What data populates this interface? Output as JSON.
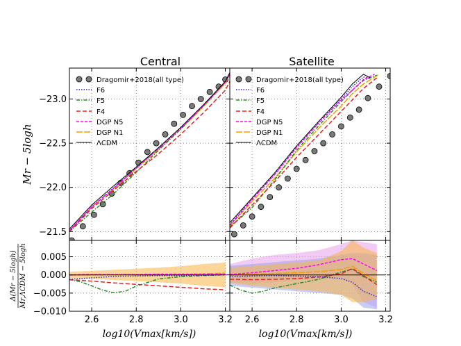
{
  "chart_data": {
    "type": "line",
    "panels": [
      {
        "title": "Central"
      },
      {
        "title": "Satellite"
      }
    ],
    "xlabel": "log10(Vmax[km/s])",
    "ylabel_top": "Mr − 5logh",
    "ylabel_bottom_num": "Δ(Mr − 5logh)",
    "ylabel_bottom_den": "Mr,ΛCDM − 5logh",
    "xlim": [
      2.5,
      3.22
    ],
    "ylim_top": [
      -21.4,
      -23.35
    ],
    "ylim_bottom": [
      -0.01,
      0.0095
    ],
    "xticks": [
      "2.6",
      "2.8",
      "3.0",
      "3.2"
    ],
    "xtick_values": [
      2.6,
      2.8,
      3.0,
      3.2
    ],
    "yticks_top": [
      "−23.0",
      "−22.5",
      "−22.0",
      "−21.5"
    ],
    "ytick_values_top": [
      -23.0,
      -22.5,
      -22.0,
      -21.5
    ],
    "yticks_bottom": [
      "0.005",
      "0.000",
      "−0.005",
      "−0.010"
    ],
    "ytick_values_bottom": [
      0.005,
      0.0,
      -0.005,
      -0.01
    ],
    "legend": [
      "Dragomir+2018(all type)",
      "F6",
      "F5",
      "F4",
      "DGP N5",
      "DGP N1",
      "ΛCDM"
    ],
    "colors": {
      "obs": "#7a7a7a",
      "F6": "#2a2ad6",
      "F5": "#2a8a2a",
      "F4": "#e02020",
      "N5": "#ff00ff",
      "N1": "#f0a000",
      "LCDM": "#000000",
      "band_N1": "#f7b544",
      "band_F6": "#9aa4f2",
      "band_N5": "#e6a0ea"
    },
    "central": {
      "obs_x": [
        2.51,
        2.56,
        2.61,
        2.65,
        2.69,
        2.73,
        2.77,
        2.81,
        2.85,
        2.89,
        2.93,
        2.97,
        3.01,
        3.05,
        3.09,
        3.13,
        3.17,
        3.2
      ],
      "obs_y": [
        -21.4,
        -21.56,
        -21.69,
        -21.81,
        -21.93,
        -22.05,
        -22.16,
        -22.28,
        -22.4,
        -22.5,
        -22.6,
        -22.72,
        -22.82,
        -22.92,
        -23.0,
        -23.08,
        -23.14,
        -23.22
      ],
      "curves": {
        "LCDM": {
          "x": [
            2.5,
            2.6,
            2.7,
            2.8,
            2.9,
            3.0,
            3.1,
            3.2,
            3.22
          ],
          "y": [
            -21.53,
            -21.8,
            -22.02,
            -22.23,
            -22.45,
            -22.68,
            -22.93,
            -23.2,
            -23.3
          ]
        },
        "F6": {
          "x": [
            2.5,
            2.6,
            2.7,
            2.8,
            2.9,
            3.0,
            3.1,
            3.2,
            3.22
          ],
          "y": [
            -21.51,
            -21.78,
            -22.0,
            -22.22,
            -22.44,
            -22.67,
            -22.92,
            -23.19,
            -23.29
          ]
        },
        "N5": {
          "x": [
            2.5,
            2.6,
            2.7,
            2.8,
            2.9,
            3.0,
            3.1,
            3.2,
            3.22
          ],
          "y": [
            -21.51,
            -21.78,
            -21.99,
            -22.22,
            -22.44,
            -22.67,
            -22.92,
            -23.19,
            -23.28
          ]
        },
        "N1": {
          "x": [
            2.5,
            2.6,
            2.7,
            2.8,
            2.9,
            3.0,
            3.1,
            3.2,
            3.22
          ],
          "y": [
            -21.51,
            -21.78,
            -21.99,
            -22.21,
            -22.43,
            -22.66,
            -22.91,
            -23.18,
            -23.27
          ]
        },
        "F5": {
          "x": [
            2.5,
            2.6,
            2.7,
            2.8,
            2.9,
            3.0,
            3.1,
            3.2,
            3.22
          ],
          "y": [
            -21.5,
            -21.72,
            -21.93,
            -22.17,
            -22.42,
            -22.66,
            -22.92,
            -23.19,
            -23.29
          ]
        },
        "F4": {
          "x": [
            2.5,
            2.6,
            2.7,
            2.8,
            2.9,
            3.0,
            3.1,
            3.2,
            3.22
          ],
          "y": [
            -21.5,
            -21.76,
            -21.97,
            -22.18,
            -22.38,
            -22.6,
            -22.84,
            -23.1,
            -23.2
          ]
        }
      },
      "deltas": {
        "F6": {
          "x": [
            2.5,
            2.6,
            2.7,
            2.8,
            2.9,
            3.0,
            3.1,
            3.2
          ],
          "y": [
            -0.0012,
            -0.0008,
            -0.0004,
            -0.0003,
            -0.0002,
            -0.0002,
            -0.0001,
            0.0
          ]
        },
        "F5": {
          "x": [
            2.5,
            2.55,
            2.6,
            2.65,
            2.7,
            2.75,
            2.8,
            2.9,
            3.0,
            3.1,
            3.2
          ],
          "y": [
            -0.0013,
            -0.0019,
            -0.003,
            -0.0042,
            -0.0049,
            -0.0045,
            -0.0031,
            -0.0011,
            -0.0005,
            -0.0002,
            0.0001
          ]
        },
        "F4": {
          "x": [
            2.5,
            2.6,
            2.7,
            2.8,
            2.9,
            3.0,
            3.1,
            3.2
          ],
          "y": [
            -0.0013,
            -0.0017,
            -0.0022,
            -0.0026,
            -0.003,
            -0.0034,
            -0.0038,
            -0.0041
          ]
        },
        "N5": {
          "x": [
            2.5,
            2.6,
            2.7,
            2.8,
            2.9,
            3.0,
            3.1,
            3.2
          ],
          "y": [
            0.0,
            0.0001,
            0.0001,
            0.0001,
            0.0002,
            0.0002,
            0.0002,
            0.0002
          ]
        },
        "N1": {
          "x": [
            2.5,
            2.6,
            2.7,
            2.8,
            2.9,
            3.0,
            3.1,
            3.2
          ],
          "y": [
            0.0,
            0.0,
            0.0001,
            0.0001,
            0.0,
            0.0001,
            0.0003,
            0.0005
          ]
        },
        "LCDM": {
          "x": [
            2.5,
            3.2
          ],
          "y": [
            0.0,
            0.0
          ]
        }
      },
      "bands": [
        {
          "series": "N1",
          "x": [
            2.5,
            2.6,
            2.7,
            2.8,
            2.9,
            3.0,
            3.1,
            3.2
          ],
          "upper": [
            0.0009,
            0.0011,
            0.0014,
            0.0017,
            0.002,
            0.0024,
            0.003,
            0.0034
          ],
          "lower": [
            -0.0009,
            -0.0011,
            -0.0014,
            -0.0017,
            -0.002,
            -0.0024,
            -0.003,
            -0.0034
          ]
        }
      ]
    },
    "satellite": {
      "obs_x": [
        2.52,
        2.56,
        2.6,
        2.64,
        2.68,
        2.72,
        2.76,
        2.8,
        2.84,
        2.88,
        2.92,
        2.96,
        3.0,
        3.04,
        3.08,
        3.12,
        3.17,
        3.22
      ],
      "obs_y": [
        -21.47,
        -21.57,
        -21.67,
        -21.78,
        -21.89,
        -22.0,
        -22.1,
        -22.21,
        -22.31,
        -22.41,
        -22.5,
        -22.6,
        -22.69,
        -22.79,
        -22.88,
        -23.01,
        -23.14,
        -23.26
      ],
      "curves": {
        "LCDM": {
          "x": [
            2.5,
            2.6,
            2.7,
            2.8,
            2.9,
            3.0,
            3.05,
            3.1,
            3.13
          ],
          "y": [
            -21.6,
            -21.88,
            -22.16,
            -22.47,
            -22.75,
            -23.02,
            -23.17,
            -23.28,
            -23.24
          ]
        },
        "F6": {
          "x": [
            2.5,
            2.6,
            2.7,
            2.8,
            2.9,
            3.0,
            3.05,
            3.1,
            3.13
          ],
          "y": [
            -21.58,
            -21.87,
            -22.15,
            -22.46,
            -22.74,
            -23.0,
            -23.14,
            -23.25,
            -23.23
          ]
        },
        "N5": {
          "x": [
            2.5,
            2.6,
            2.7,
            2.8,
            2.9,
            3.0,
            3.05,
            3.1,
            3.15
          ],
          "y": [
            -21.57,
            -21.86,
            -22.14,
            -22.45,
            -22.73,
            -22.99,
            -23.1,
            -23.22,
            -23.28
          ]
        },
        "N1": {
          "x": [
            2.5,
            2.6,
            2.7,
            2.8,
            2.9,
            3.0,
            3.05,
            3.1,
            3.17
          ],
          "y": [
            -21.56,
            -21.84,
            -22.1,
            -22.4,
            -22.67,
            -22.92,
            -23.06,
            -23.17,
            -23.28
          ]
        },
        "F5": {
          "x": [
            2.5,
            2.6,
            2.7,
            2.8,
            2.9,
            3.0,
            3.05,
            3.1,
            3.16
          ],
          "y": [
            -21.55,
            -21.77,
            -22.08,
            -22.42,
            -22.7,
            -22.97,
            -23.1,
            -23.21,
            -23.27
          ]
        },
        "F4": {
          "x": [
            2.5,
            2.6,
            2.7,
            2.8,
            2.9,
            3.0,
            3.05,
            3.1,
            3.16
          ],
          "y": [
            -21.54,
            -21.8,
            -22.06,
            -22.34,
            -22.6,
            -22.86,
            -22.99,
            -23.12,
            -23.24
          ]
        }
      },
      "deltas": {
        "F6": {
          "x": [
            2.5,
            2.6,
            2.7,
            2.8,
            2.9,
            3.0,
            3.05,
            3.1,
            3.16
          ],
          "y": [
            -0.0005,
            -0.0003,
            -0.0002,
            -0.0003,
            -0.0005,
            -0.001,
            -0.002,
            -0.0045,
            -0.006
          ]
        },
        "F5": {
          "x": [
            2.5,
            2.55,
            2.6,
            2.65,
            2.7,
            2.8,
            2.9,
            3.0,
            3.05,
            3.1,
            3.16
          ],
          "y": [
            -0.0028,
            -0.0042,
            -0.005,
            -0.0045,
            -0.0036,
            -0.0024,
            -0.0012,
            0.0008,
            0.0016,
            -0.0005,
            -0.002
          ]
        },
        "F4": {
          "x": [
            2.5,
            2.6,
            2.7,
            2.8,
            2.9,
            3.0,
            3.05,
            3.1,
            3.16
          ],
          "y": [
            -0.0012,
            -0.0013,
            -0.0012,
            -0.001,
            -0.0006,
            0.0003,
            0.0018,
            -0.0002,
            -0.0027
          ]
        },
        "N5": {
          "x": [
            2.5,
            2.6,
            2.7,
            2.8,
            2.9,
            3.0,
            3.05,
            3.1,
            3.16
          ],
          "y": [
            0.0001,
            0.0006,
            0.0012,
            0.0018,
            0.0028,
            0.0042,
            0.0045,
            0.003,
            0.0012
          ]
        },
        "N1": {
          "x": [
            2.5,
            2.6,
            2.7,
            2.8,
            2.9,
            3.0,
            3.05,
            3.1,
            3.16
          ],
          "y": [
            0.0,
            0.0002,
            0.0004,
            0.0006,
            0.0009,
            0.0015,
            0.0024,
            0.0004,
            -0.0016
          ]
        },
        "LCDM": {
          "x": [
            2.5,
            3.2
          ],
          "y": [
            0.0,
            0.0
          ]
        }
      },
      "bands": [
        {
          "series": "N5",
          "x": [
            2.5,
            2.6,
            2.7,
            2.8,
            2.9,
            3.0,
            3.05,
            3.1,
            3.16
          ],
          "upper": [
            0.003,
            0.0045,
            0.0055,
            0.006,
            0.0068,
            0.0085,
            0.0095,
            0.009,
            0.0085
          ],
          "lower": [
            -0.002,
            -0.0025,
            -0.002,
            -0.0015,
            -0.0012,
            -0.001,
            -0.0025,
            -0.0075,
            -0.009
          ]
        },
        {
          "series": "F6",
          "x": [
            2.5,
            2.6,
            2.7,
            2.8,
            2.9,
            3.0,
            3.05,
            3.1,
            3.16
          ],
          "upper": [
            0.0025,
            0.003,
            0.0035,
            0.004,
            0.0045,
            0.0055,
            0.006,
            0.006,
            0.0055
          ],
          "lower": [
            -0.003,
            -0.0035,
            -0.004,
            -0.0045,
            -0.005,
            -0.0055,
            -0.0065,
            -0.009,
            -0.0095
          ]
        },
        {
          "series": "N1",
          "x": [
            2.5,
            2.6,
            2.7,
            2.8,
            2.9,
            3.0,
            3.05,
            3.1,
            3.16
          ],
          "upper": [
            0.002,
            0.0025,
            0.003,
            0.0035,
            0.004,
            0.0065,
            0.0095,
            0.0075,
            0.006
          ],
          "lower": [
            -0.0022,
            -0.003,
            -0.0035,
            -0.004,
            -0.0045,
            -0.0055,
            -0.0075,
            -0.0075,
            -0.0065
          ]
        }
      ]
    }
  }
}
